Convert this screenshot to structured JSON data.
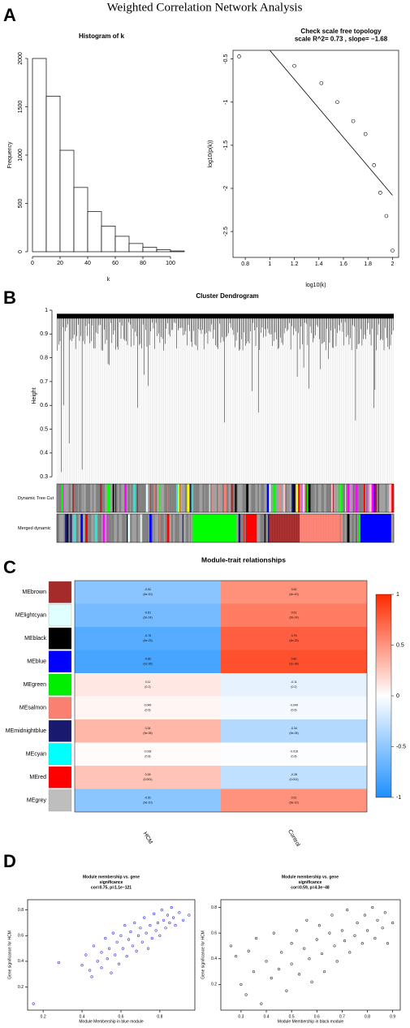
{
  "title": "Weighted Correlation Network Analysis",
  "panel_labels": [
    "A",
    "B",
    "C",
    "D"
  ],
  "chart_data": [
    {
      "type": "histogram",
      "title": [
        "Histogram of k"
      ],
      "xlabel": "k",
      "ylabel": "Frequency",
      "bins": [
        0,
        10,
        20,
        30,
        40,
        50,
        60,
        70,
        80,
        90,
        100,
        110
      ],
      "values": [
        2000,
        1610,
        1050,
        665,
        415,
        265,
        160,
        85,
        45,
        20,
        8
      ],
      "color": "#ffffff",
      "xlim": [
        0,
        110
      ],
      "xticks": [
        0,
        20,
        40,
        60,
        80,
        100
      ],
      "ylim": [
        0,
        2000
      ],
      "yticks": [
        0,
        500,
        1000,
        1500,
        2000
      ]
    },
    {
      "type": "scatter",
      "title": [
        "Check scale free topology",
        "scale R^2= 0.73 , slope= −1.68"
      ],
      "xlabel": "log10(k)",
      "ylabel": "log10(p(k))",
      "x": [
        0.75,
        1.2,
        1.42,
        1.55,
        1.68,
        1.78,
        1.85,
        1.9,
        1.95,
        2.0
      ],
      "y": [
        -0.47,
        -0.58,
        -0.78,
        -1.0,
        -1.22,
        -1.37,
        -1.73,
        -2.05,
        -2.32,
        -2.72
      ],
      "fit": {
        "intercept": 1.28,
        "slope": -1.68
      },
      "color": "#000000",
      "xlim": [
        0.7,
        2.05
      ],
      "xticks": [
        0.8,
        1.0,
        1.2,
        1.4,
        1.6,
        1.8,
        2.0
      ],
      "ylim": [
        -2.8,
        -0.4
      ],
      "yticks": [
        -0.5,
        -1.0,
        -1.5,
        -2.0,
        -2.5
      ],
      "box": true
    },
    {
      "type": "dendrogram",
      "title": [
        "Cluster Dendrogram"
      ],
      "ylabel": "Height",
      "ylim": [
        0.28,
        1.0
      ],
      "yticks": [
        0.3,
        0.4,
        0.5,
        0.6,
        0.7,
        0.8,
        0.9,
        1.0
      ],
      "strips": [
        "Dynamic Tree Cut",
        "Merged dynamic"
      ],
      "strip_colors": [
        "#a0a0a0",
        "#808080",
        "#ff00ff",
        "#00ff00",
        "#ff0000",
        "#a52a2a",
        "#fa8072",
        "#40e0d0",
        "#000000",
        "#0000ff",
        "#ffff00",
        "#191970",
        "#e0ffff",
        "#ffc0cb"
      ]
    },
    {
      "type": "heatmap",
      "title": [
        "Module-trait relationships"
      ],
      "rows": [
        "MEbrown",
        "MElightcyan",
        "MEblack",
        "MEblue",
        "MEgreen",
        "MEsalmon",
        "MEmidnightblue",
        "MEcyan",
        "MEred",
        "MEgrey"
      ],
      "row_colors": [
        "#a52a2a",
        "#e0ffff",
        "#000000",
        "#0000ff",
        "#00ee00",
        "#fa8072",
        "#191970",
        "#00ffff",
        "#ff0000",
        "#bebebe"
      ],
      "columns": [
        "HCM",
        "Control"
      ],
      "values": [
        [
          -0.52,
          0.52
        ],
        [
          -0.61,
          0.61
        ],
        [
          -0.75,
          0.75
        ],
        [
          -0.82,
          0.82
        ],
        [
          0.11,
          -0.11
        ],
        [
          0.049,
          -0.049
        ],
        [
          0.34,
          -0.34
        ],
        [
          0.018,
          -0.018
        ],
        [
          0.28,
          -0.28
        ],
        [
          -0.51,
          0.51
        ]
      ],
      "p_labels": [
        [
          "(4e-10)",
          "(4e-10)"
        ],
        [
          "(2e-14)",
          "(2e-14)"
        ],
        [
          "(4e-23)",
          "(4e-23)"
        ],
        [
          "(1e-33)",
          "(1e-33)"
        ],
        [
          "(0.2)",
          "(0.2)"
        ],
        [
          "(0.6)",
          "(0.6)"
        ],
        [
          "(9e-05)",
          "(9e-05)"
        ],
        [
          "(0.8)",
          "(0.8)"
        ],
        [
          "(0.001)",
          "(0.001)"
        ],
        [
          "(9e-10)",
          "(9e-10)"
        ]
      ],
      "colorscale": [
        "#1e90ff",
        "#ffffff",
        "#ff2a00"
      ],
      "clim": [
        -1,
        1
      ],
      "cticks": [
        -1,
        -0.5,
        0,
        0.5,
        1
      ]
    },
    {
      "type": "scatter",
      "title": [
        "Module membership vs. gene",
        "significance",
        "cor=0.75, p=1.1e−121"
      ],
      "xlabel": "Module Membership in blue module",
      "ylabel": "Gene significance for HCM",
      "color": "#3333dd",
      "x": [
        0.15,
        0.28,
        0.4,
        0.42,
        0.44,
        0.45,
        0.46,
        0.48,
        0.5,
        0.5,
        0.52,
        0.53,
        0.54,
        0.55,
        0.56,
        0.57,
        0.58,
        0.59,
        0.6,
        0.61,
        0.62,
        0.63,
        0.64,
        0.65,
        0.66,
        0.67,
        0.68,
        0.69,
        0.7,
        0.71,
        0.72,
        0.73,
        0.74,
        0.75,
        0.76,
        0.77,
        0.78,
        0.79,
        0.8,
        0.81,
        0.82,
        0.83,
        0.84,
        0.85,
        0.86,
        0.87,
        0.88,
        0.9,
        0.92,
        0.95
      ],
      "y": [
        0.07,
        0.39,
        0.37,
        0.45,
        0.33,
        0.28,
        0.52,
        0.4,
        0.47,
        0.35,
        0.58,
        0.42,
        0.5,
        0.31,
        0.62,
        0.45,
        0.55,
        0.38,
        0.6,
        0.5,
        0.68,
        0.44,
        0.57,
        0.63,
        0.52,
        0.7,
        0.48,
        0.6,
        0.66,
        0.55,
        0.74,
        0.62,
        0.5,
        0.68,
        0.58,
        0.77,
        0.64,
        0.7,
        0.6,
        0.8,
        0.72,
        0.66,
        0.76,
        0.7,
        0.82,
        0.74,
        0.68,
        0.78,
        0.72,
        0.76
      ],
      "xlim": [
        0.12,
        0.98
      ],
      "xticks": [
        0.2,
        0.4,
        0.6,
        0.8
      ],
      "ylim": [
        0.02,
        0.88
      ],
      "yticks": [
        0.2,
        0.4,
        0.6,
        0.8
      ],
      "box": true
    },
    {
      "type": "scatter",
      "title": [
        "Module membership vs. gene",
        "significance",
        "cor=0.59, p=4.3e−48"
      ],
      "xlabel": "Module Membership in black module",
      "ylabel": "Gene significance for HCM",
      "color": "#333333",
      "x": [
        0.26,
        0.28,
        0.3,
        0.32,
        0.33,
        0.35,
        0.36,
        0.38,
        0.4,
        0.42,
        0.43,
        0.45,
        0.46,
        0.48,
        0.5,
        0.5,
        0.52,
        0.53,
        0.55,
        0.56,
        0.57,
        0.58,
        0.6,
        0.61,
        0.62,
        0.63,
        0.65,
        0.66,
        0.67,
        0.68,
        0.7,
        0.71,
        0.72,
        0.73,
        0.75,
        0.76,
        0.78,
        0.79,
        0.8,
        0.82,
        0.83,
        0.84,
        0.86,
        0.87,
        0.88,
        0.9
      ],
      "y": [
        0.5,
        0.42,
        0.2,
        0.12,
        0.46,
        0.3,
        0.56,
        0.05,
        0.38,
        0.25,
        0.6,
        0.32,
        0.45,
        0.15,
        0.52,
        0.36,
        0.62,
        0.28,
        0.48,
        0.7,
        0.4,
        0.22,
        0.55,
        0.66,
        0.44,
        0.3,
        0.6,
        0.74,
        0.5,
        0.38,
        0.62,
        0.54,
        0.78,
        0.45,
        0.58,
        0.68,
        0.52,
        0.74,
        0.62,
        0.8,
        0.56,
        0.7,
        0.64,
        0.76,
        0.52,
        0.68
      ],
      "xlim": [
        0.22,
        0.93
      ],
      "xticks": [
        0.3,
        0.4,
        0.5,
        0.6,
        0.7,
        0.8,
        0.9
      ],
      "ylim": [
        0.0,
        0.86
      ],
      "yticks": [
        0.2,
        0.4,
        0.6,
        0.8
      ],
      "box": true
    }
  ]
}
